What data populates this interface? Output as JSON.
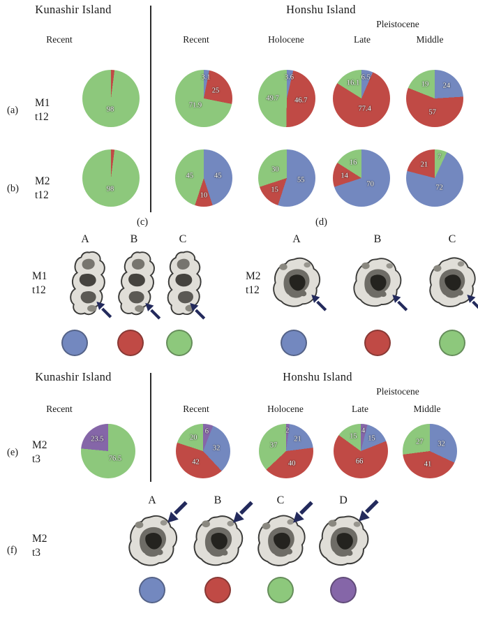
{
  "colors": {
    "green": "#8dc87c",
    "red": "#c04a45",
    "blue": "#7388bf",
    "purple": "#8566a8",
    "arrow": "#232a5c"
  },
  "panels": {
    "a": "(a)",
    "b": "(b)",
    "c": "(c)",
    "d": "(d)",
    "e": "(e)",
    "f": "(f)"
  },
  "section_t12": {
    "kunashir_title": "Kunashir Island",
    "honshu_title": "Honshu Island",
    "pleistocene": "Pleistocene",
    "col_kunashir_recent": "Recent",
    "col_recent": "Recent",
    "col_holocene": "Holocene",
    "col_late": "Late",
    "col_middle": "Middle",
    "row_a": {
      "line1": "M1",
      "line2": "t12"
    },
    "row_b": {
      "line1": "M2",
      "line2": "t12"
    }
  },
  "section_t3": {
    "kunashir_title": "Kunashir Island",
    "honshu_title": "Honshu Island",
    "pleistocene": "Pleistocene",
    "col_kunashir_recent": "Recent",
    "col_recent": "Recent",
    "col_holocene": "Holocene",
    "col_late": "Late",
    "col_middle": "Middle",
    "row_e": {
      "line1": "M2",
      "line2": "t3"
    }
  },
  "morphotypes": {
    "m1_t12": {
      "trait1": "M1",
      "trait2": "t12",
      "letters": [
        "A",
        "B",
        "C"
      ],
      "legend": [
        "blue",
        "red",
        "green"
      ]
    },
    "m2_t12": {
      "trait1": "M2",
      "trait2": "t12",
      "letters": [
        "A",
        "B",
        "C"
      ],
      "legend": [
        "blue",
        "red",
        "green"
      ]
    },
    "m2_t3": {
      "trait1": "M2",
      "trait2": "t3",
      "letters": [
        "A",
        "B",
        "C",
        "D"
      ],
      "legend": [
        "blue",
        "red",
        "green",
        "purple"
      ]
    }
  },
  "chart_data": [
    {
      "id": "a-kunashir",
      "type": "pie",
      "trait": "M1 t12",
      "island": "Kunashir",
      "period": "Recent",
      "slices": [
        {
          "color": "red",
          "value": 2,
          "label": ""
        },
        {
          "color": "green",
          "value": 98,
          "label": "98"
        }
      ]
    },
    {
      "id": "a-recent",
      "type": "pie",
      "trait": "M1 t12",
      "island": "Honshu",
      "period": "Recent",
      "slices": [
        {
          "color": "blue",
          "value": 3.1,
          "label": "3.1"
        },
        {
          "color": "red",
          "value": 25,
          "label": "25"
        },
        {
          "color": "green",
          "value": 71.9,
          "label": "71.9"
        }
      ]
    },
    {
      "id": "a-holocene",
      "type": "pie",
      "trait": "M1 t12",
      "island": "Honshu",
      "period": "Holocene",
      "slices": [
        {
          "color": "blue",
          "value": 3.6,
          "label": "3.6"
        },
        {
          "color": "red",
          "value": 46.7,
          "label": "46.7"
        },
        {
          "color": "green",
          "value": 49.7,
          "label": "49.7"
        }
      ]
    },
    {
      "id": "a-late",
      "type": "pie",
      "trait": "M1 t12",
      "island": "Honshu",
      "period": "Late Pleistocene",
      "slices": [
        {
          "color": "blue",
          "value": 6.5,
          "label": "6.5"
        },
        {
          "color": "red",
          "value": 77.4,
          "label": "77.4"
        },
        {
          "color": "green",
          "value": 16.1,
          "label": "16.1"
        }
      ]
    },
    {
      "id": "a-middle",
      "type": "pie",
      "trait": "M1 t12",
      "island": "Honshu",
      "period": "Middle Pleistocene",
      "slices": [
        {
          "color": "blue",
          "value": 24,
          "label": "24"
        },
        {
          "color": "red",
          "value": 57,
          "label": "57"
        },
        {
          "color": "green",
          "value": 19,
          "label": "19"
        }
      ]
    },
    {
      "id": "b-kunashir",
      "type": "pie",
      "trait": "M2 t12",
      "island": "Kunashir",
      "period": "Recent",
      "slices": [
        {
          "color": "red",
          "value": 2,
          "label": ""
        },
        {
          "color": "green",
          "value": 98,
          "label": "98"
        }
      ]
    },
    {
      "id": "b-recent",
      "type": "pie",
      "trait": "M2 t12",
      "island": "Honshu",
      "period": "Recent",
      "slices": [
        {
          "color": "blue",
          "value": 45,
          "label": "45"
        },
        {
          "color": "red",
          "value": 10,
          "label": "10"
        },
        {
          "color": "green",
          "value": 45,
          "label": "45"
        }
      ]
    },
    {
      "id": "b-holocene",
      "type": "pie",
      "trait": "M2 t12",
      "island": "Honshu",
      "period": "Holocene",
      "slices": [
        {
          "color": "blue",
          "value": 55,
          "label": "55"
        },
        {
          "color": "red",
          "value": 15,
          "label": "15"
        },
        {
          "color": "green",
          "value": 30,
          "label": "30"
        }
      ]
    },
    {
      "id": "b-late",
      "type": "pie",
      "trait": "M2 t12",
      "island": "Honshu",
      "period": "Late Pleistocene",
      "slices": [
        {
          "color": "blue",
          "value": 70,
          "label": "70"
        },
        {
          "color": "red",
          "value": 14,
          "label": "14"
        },
        {
          "color": "green",
          "value": 16,
          "label": "16"
        }
      ]
    },
    {
      "id": "b-middle",
      "type": "pie",
      "trait": "M2 t12",
      "island": "Honshu",
      "period": "Middle Pleistocene",
      "slices": [
        {
          "color": "green",
          "value": 7,
          "label": "7"
        },
        {
          "color": "blue",
          "value": 72,
          "label": "72"
        },
        {
          "color": "red",
          "value": 21,
          "label": "21"
        }
      ]
    },
    {
      "id": "e-kunashir",
      "type": "pie",
      "trait": "M2 t3",
      "island": "Kunashir",
      "period": "Recent",
      "slices": [
        {
          "color": "green",
          "value": 76.5,
          "label": "76.5"
        },
        {
          "color": "purple",
          "value": 23.5,
          "label": "23.5"
        }
      ]
    },
    {
      "id": "e-recent",
      "type": "pie",
      "trait": "M2 t3",
      "island": "Honshu",
      "period": "Recent",
      "slices": [
        {
          "color": "purple",
          "value": 6,
          "label": "6"
        },
        {
          "color": "blue",
          "value": 32,
          "label": "32"
        },
        {
          "color": "red",
          "value": 42,
          "label": "42"
        },
        {
          "color": "green",
          "value": 20,
          "label": "20"
        }
      ]
    },
    {
      "id": "e-holocene",
      "type": "pie",
      "trait": "M2 t3",
      "island": "Honshu",
      "period": "Holocene",
      "slices": [
        {
          "color": "purple",
          "value": 2,
          "label": "2"
        },
        {
          "color": "blue",
          "value": 21,
          "label": "21"
        },
        {
          "color": "red",
          "value": 40,
          "label": "40"
        },
        {
          "color": "green",
          "value": 37,
          "label": "37"
        }
      ]
    },
    {
      "id": "e-late",
      "type": "pie",
      "trait": "M2 t3",
      "island": "Honshu",
      "period": "Late Pleistocene",
      "slices": [
        {
          "color": "purple",
          "value": 4,
          "label": "4"
        },
        {
          "color": "blue",
          "value": 15,
          "label": "15"
        },
        {
          "color": "red",
          "value": 66,
          "label": "66"
        },
        {
          "color": "green",
          "value": 15,
          "label": "15"
        }
      ]
    },
    {
      "id": "e-middle",
      "type": "pie",
      "trait": "M2 t3",
      "island": "Honshu",
      "period": "Middle Pleistocene",
      "slices": [
        {
          "color": "blue",
          "value": 32,
          "label": "32"
        },
        {
          "color": "red",
          "value": 41,
          "label": "41"
        },
        {
          "color": "green",
          "value": 27,
          "label": "27"
        }
      ]
    }
  ]
}
